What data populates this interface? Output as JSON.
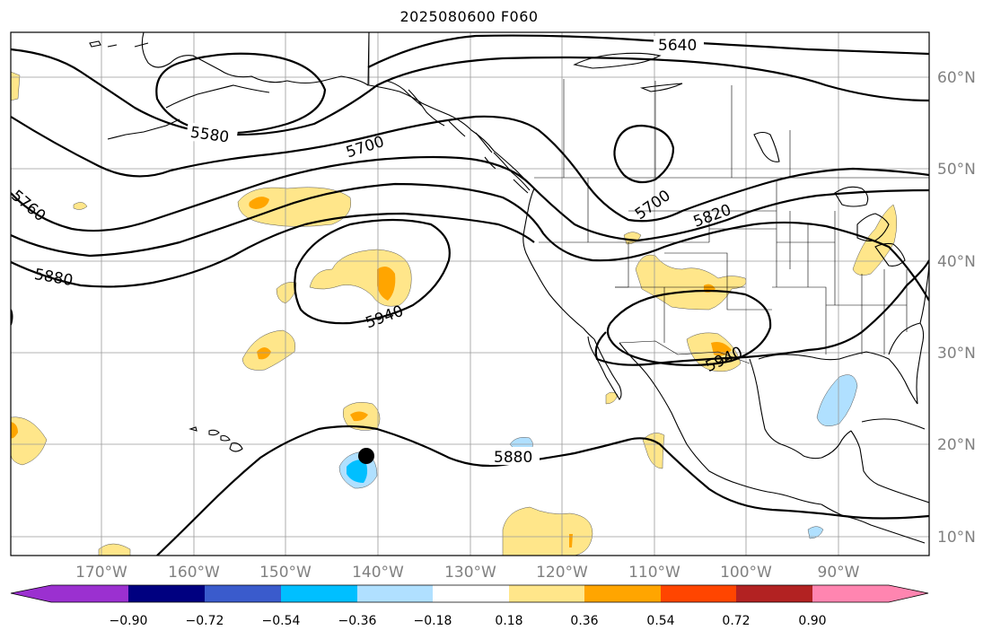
{
  "title": "2025080600 F060",
  "map": {
    "longitude_labels": [
      "170°W",
      "160°W",
      "150°W",
      "140°W",
      "130°W",
      "120°W",
      "110°W",
      "100°W",
      "90°W"
    ],
    "latitude_labels": [
      "60°N",
      "50°N",
      "40°N",
      "30°N",
      "20°N",
      "10°N"
    ],
    "contour_labels": [
      "5640",
      "5580",
      "5700",
      "5760",
      "5880",
      "5940",
      "5700",
      "5820",
      "5940",
      "5880"
    ],
    "storm_marker": "storm-position-dot"
  },
  "colorbar": {
    "tick_labels": [
      "−0.90",
      "−0.72",
      "−0.54",
      "−0.36",
      "−0.18",
      "0.18",
      "0.36",
      "0.54",
      "0.72",
      "0.90"
    ],
    "colors": [
      "#9b30d0",
      "#000080",
      "#3a5bcc",
      "#00bfff",
      "#b0e0ff",
      "#ffffff",
      "#ffe68a",
      "#ffa500",
      "#ff4500",
      "#b22222",
      "#ff85b0"
    ]
  }
}
